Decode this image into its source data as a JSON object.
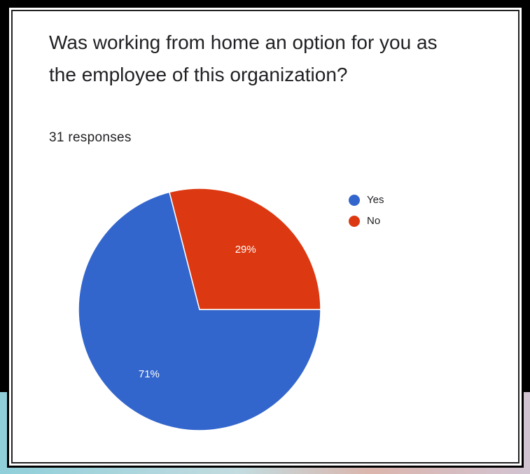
{
  "question": {
    "title": "Was working from home an option for you as the employee of this organization?",
    "responses": "31 responses"
  },
  "colors": {
    "yes": "#3366cc",
    "no": "#dc3912"
  },
  "chart_data": {
    "type": "pie",
    "title": "Was working from home an option for you as the employee of this organization?",
    "subtitle": "31 responses",
    "categories": [
      "Yes",
      "No"
    ],
    "values": [
      71,
      29
    ],
    "labels": [
      "71%",
      "29%"
    ],
    "colors": [
      "#3366cc",
      "#dc3912"
    ],
    "legend": "right"
  }
}
